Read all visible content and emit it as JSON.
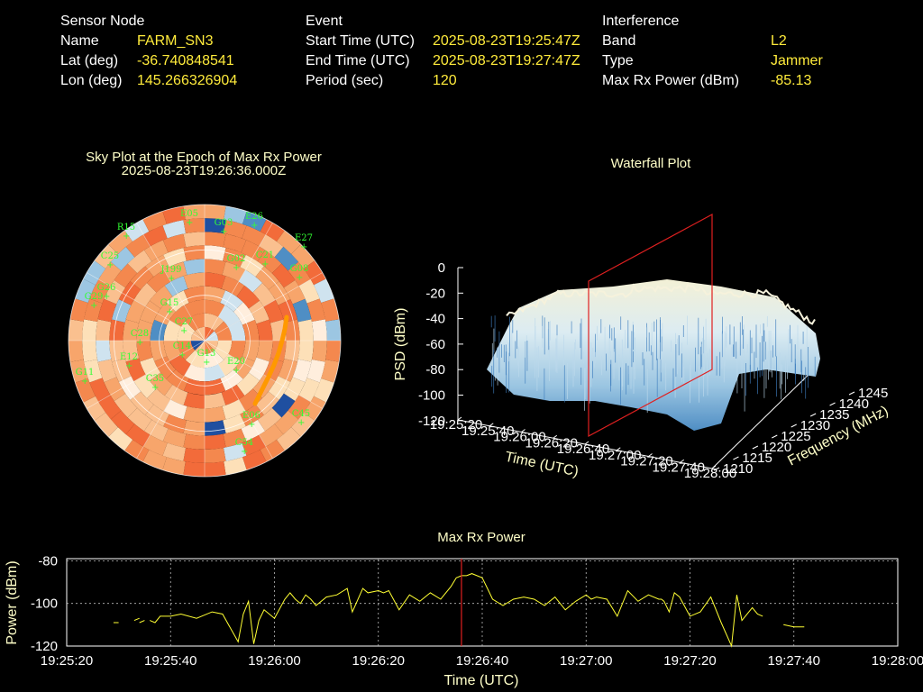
{
  "header": {
    "sensor": {
      "heading": "Sensor Node",
      "rows": [
        {
          "label": "Name",
          "value": "FARM_SN3"
        },
        {
          "label": "Lat (deg)",
          "value": "-36.740848541"
        },
        {
          "label": "Lon (deg)",
          "value": "145.266326904"
        }
      ]
    },
    "event": {
      "heading": "Event",
      "rows": [
        {
          "label": "Start Time (UTC)",
          "value": "2025-08-23T19:25:47Z"
        },
        {
          "label": "End Time (UTC)",
          "value": "2025-08-23T19:27:47Z"
        },
        {
          "label": "Period (sec)",
          "value": "120"
        }
      ]
    },
    "interference": {
      "heading": "Interference",
      "rows": [
        {
          "label": "Band",
          "value": "L2"
        },
        {
          "label": "Type",
          "value": "Jammer"
        },
        {
          "label": "Max Rx Power (dBm)",
          "value": "-85.13"
        }
      ]
    }
  },
  "chart_data": [
    {
      "type": "scatter",
      "title": "Sky Plot at the Epoch of Max Rx Power",
      "subtitle": "2025-08-23T19:26:36.000Z",
      "satellites": [
        "R15",
        "E05",
        "G03",
        "E26",
        "E27",
        "C25",
        "G02",
        "C21",
        "G08",
        "J199",
        "G29",
        "G15",
        "G26",
        "C27",
        "C28",
        "G11",
        "E12",
        "C14",
        "C35",
        "G13",
        "E20",
        "C45",
        "E06",
        "C54"
      ]
    },
    {
      "type": "heatmap",
      "title": "Waterfall Plot",
      "xlabel": "Time (UTC)",
      "ylabel": "Frequency (MHz)",
      "zlabel": "PSD (dBm)",
      "x_ticks": [
        "19:25:20",
        "19:25:40",
        "19:26:00",
        "19:26:20",
        "19:26:40",
        "19:27:00",
        "19:27:20",
        "19:27:40",
        "19:28:00"
      ],
      "y_ticks": [
        "1210",
        "1215",
        "1220",
        "1225",
        "1230",
        "1235",
        "1240",
        "1245"
      ],
      "z_ticks": [
        "0",
        "-20",
        "-40",
        "-60",
        "-80",
        "-100",
        "-120"
      ],
      "zlim": [
        -120,
        0
      ]
    },
    {
      "type": "line",
      "title": "Max Rx Power",
      "xlabel": "Time (UTC)",
      "ylabel": "Power (dBm)",
      "x_ticks": [
        "19:25:20",
        "19:25:40",
        "19:26:00",
        "19:26:20",
        "19:26:40",
        "19:27:00",
        "19:27:20",
        "19:27:40",
        "19:28:00"
      ],
      "y_ticks": [
        "-80",
        "-100",
        "-120"
      ],
      "ylim": [
        -120,
        -79
      ],
      "xlim_sec": [
        0,
        160
      ],
      "marker_sec": 76,
      "x": [
        9,
        10,
        14,
        15,
        16,
        17,
        18,
        20,
        22,
        25,
        28,
        30,
        33,
        34,
        35,
        36,
        37,
        38,
        40,
        42,
        43,
        44,
        45,
        46,
        47,
        48,
        50,
        52,
        54,
        55,
        57,
        58,
        60,
        61,
        62,
        64,
        66,
        68,
        70,
        72,
        74,
        75,
        76,
        77,
        78,
        79,
        80,
        81,
        82,
        84,
        86,
        88,
        90,
        92,
        94,
        96,
        98,
        100,
        101,
        102,
        104,
        106,
        108,
        110,
        112,
        114,
        114.5,
        115,
        116,
        117,
        118,
        120,
        122,
        124,
        126,
        128,
        129,
        130,
        132,
        133,
        134
      ],
      "y": [
        -109,
        -109,
        -109,
        -108,
        -108,
        -109,
        -106,
        -106,
        -105,
        -107,
        -104,
        -105,
        -118,
        -105,
        -99,
        -119,
        -108,
        -103,
        -107,
        -98,
        -95,
        -98,
        -100,
        -96,
        -98,
        -101,
        -97,
        -96,
        -93,
        -104,
        -93,
        -95,
        -94,
        -95,
        -94,
        -103,
        -96,
        -99,
        -95,
        -98,
        -92,
        -88,
        -87,
        -87,
        -86,
        -87,
        -88,
        -93,
        -98,
        -101,
        -98,
        -97,
        -98,
        -101,
        -97,
        -103,
        -99,
        -96,
        -98,
        -97,
        -98,
        -106,
        -94,
        -99,
        -96,
        -98,
        -98,
        -99,
        -104,
        -95,
        -97,
        -106,
        -104,
        -97,
        -109,
        -120,
        -96,
        -108,
        -102,
        -105,
        -106
      ],
      "gaps_after": [
        10,
        15,
        134
      ],
      "extra_segments": [
        [
          [
            13,
            -108
          ],
          [
            14,
            -107
          ]
        ],
        [
          [
            138,
            -110
          ],
          [
            140,
            -111
          ],
          [
            142,
            -111
          ]
        ]
      ]
    }
  ]
}
